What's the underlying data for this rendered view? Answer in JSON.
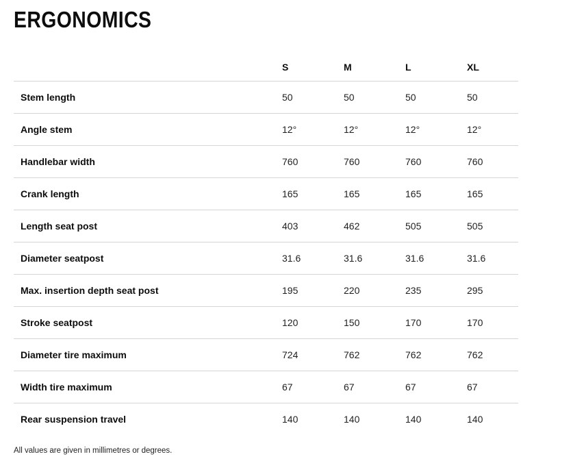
{
  "page": {
    "title": "ERGONOMICS",
    "footnote": "All values are given in millimetres or degrees."
  },
  "colors": {
    "text": "#0d0d0d",
    "value_text": "#1f1f1f",
    "divider": "#d5d5d5",
    "background": "#ffffff"
  },
  "table": {
    "columns": [
      "S",
      "M",
      "L",
      "XL"
    ],
    "rows": [
      {
        "label": "Stem length",
        "values": [
          "50",
          "50",
          "50",
          "50"
        ]
      },
      {
        "label": "Angle stem",
        "values": [
          "12°",
          "12°",
          "12°",
          "12°"
        ]
      },
      {
        "label": "Handlebar width",
        "values": [
          "760",
          "760",
          "760",
          "760"
        ]
      },
      {
        "label": "Crank length",
        "values": [
          "165",
          "165",
          "165",
          "165"
        ]
      },
      {
        "label": "Length seat post",
        "values": [
          "403",
          "462",
          "505",
          "505"
        ]
      },
      {
        "label": "Diameter seatpost",
        "values": [
          "31.6",
          "31.6",
          "31.6",
          "31.6"
        ]
      },
      {
        "label": "Max. insertion depth seat post",
        "values": [
          "195",
          "220",
          "235",
          "295"
        ]
      },
      {
        "label": "Stroke seatpost",
        "values": [
          "120",
          "150",
          "170",
          "170"
        ]
      },
      {
        "label": "Diameter tire maximum",
        "values": [
          "724",
          "762",
          "762",
          "762"
        ]
      },
      {
        "label": "Width tire maximum",
        "values": [
          "67",
          "67",
          "67",
          "67"
        ]
      },
      {
        "label": "Rear suspension travel",
        "values": [
          "140",
          "140",
          "140",
          "140"
        ]
      }
    ]
  }
}
